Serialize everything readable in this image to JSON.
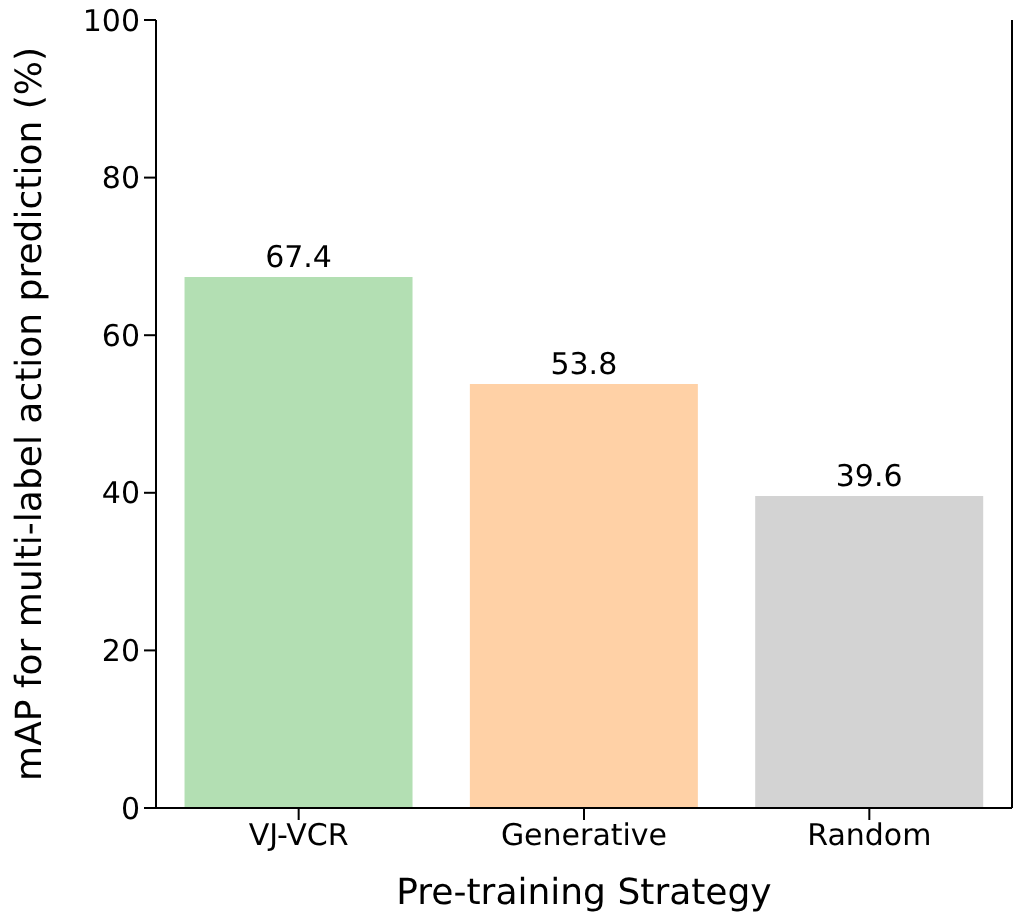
{
  "chart_data": {
    "type": "bar",
    "xlabel": "Pre-training Strategy",
    "ylabel": "mAP for multi-label action prediction (%)",
    "categories": [
      "VJ-VCR",
      "Generative",
      "Random"
    ],
    "values": [
      67.4,
      53.8,
      39.6
    ],
    "colors": [
      "#b3dfb3",
      "#ffd1a6",
      "#d3d3d3"
    ],
    "ylim": [
      0,
      100
    ],
    "yticks": [
      0,
      20,
      40,
      60,
      80,
      100
    ],
    "grid": false,
    "legend": false,
    "data_labels": true
  }
}
